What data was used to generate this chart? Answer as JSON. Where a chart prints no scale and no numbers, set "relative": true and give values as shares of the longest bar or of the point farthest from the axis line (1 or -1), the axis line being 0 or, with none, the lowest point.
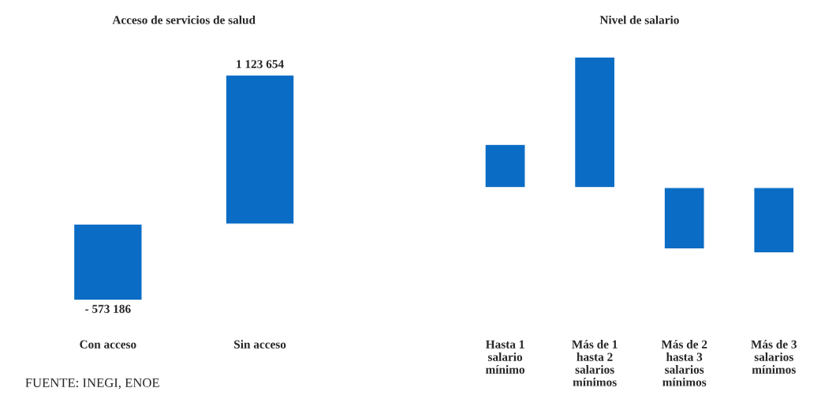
{
  "chart_data": [
    {
      "type": "bar",
      "title": "Acceso de servicios de salud",
      "categories": [
        "Con acceso",
        "Sin acceso"
      ],
      "values": [
        -573186,
        1123654
      ],
      "value_labels": [
        "- 573 186",
        "1 123 654"
      ],
      "color": "#0a6cc4",
      "annotations": [
        "FUENTE: INEGI, ENOE"
      ]
    },
    {
      "type": "bar",
      "title": "Nivel de salario",
      "relative": true,
      "categories": [
        "Hasta 1\nsalario\nmínimo",
        "Más de 1\nhasta 2\nsalarios\nmínimos",
        "Más de 2\nhasta 3\nsalarios\nmínimos",
        "Más de 3\nsalarios\nmínimos"
      ],
      "values": [
        0.33,
        1,
        -0.47,
        -0.5
      ],
      "color": "#0a6cc4"
    }
  ]
}
